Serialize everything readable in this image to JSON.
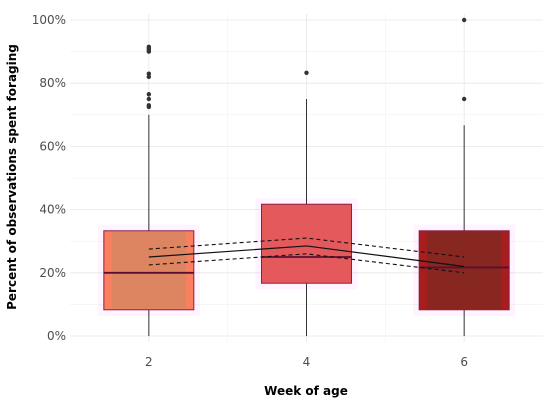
{
  "chart_data": {
    "type": "box",
    "title": "",
    "xlabel": "Week of age",
    "ylabel": "Percent of observations spent foraging",
    "ylim": [
      0,
      100
    ],
    "y_ticks": [
      0,
      20,
      40,
      60,
      80,
      100
    ],
    "y_tick_labels": [
      "0%",
      "20%",
      "40%",
      "60%",
      "80%",
      "100%"
    ],
    "categories": [
      "2",
      "4",
      "6"
    ],
    "x_values": [
      2,
      4,
      6
    ],
    "xlim": [
      1,
      7
    ],
    "grid": true,
    "legend": "none",
    "boxes": [
      {
        "category": "2",
        "min": 0,
        "q1": 8.3,
        "median": 20,
        "q3": 33.3,
        "max": 70,
        "outliers": [
          91.5,
          91,
          90.5,
          90,
          83,
          82,
          76.5,
          75,
          73,
          72.5
        ],
        "fill": "#FA7F5E",
        "inner": "#C48A62"
      },
      {
        "category": "4",
        "min": 0,
        "q1": 16.7,
        "median": 25,
        "q3": 41.7,
        "max": 75,
        "outliers": [
          83.3
        ],
        "fill": "#E45A5B",
        "inner": "#E45A5B"
      },
      {
        "category": "6",
        "min": 0,
        "q1": 8.3,
        "median": 21.7,
        "q3": 33.3,
        "max": 66.7,
        "outliers": [
          100,
          75
        ],
        "fill": "#A81D1D",
        "inner": "#6E2E22"
      }
    ],
    "trend": {
      "x": [
        2,
        4,
        6
      ],
      "mean": [
        25,
        28.5,
        22
      ],
      "lower": [
        22.5,
        26,
        20
      ],
      "upper": [
        27.5,
        31,
        25
      ]
    }
  }
}
